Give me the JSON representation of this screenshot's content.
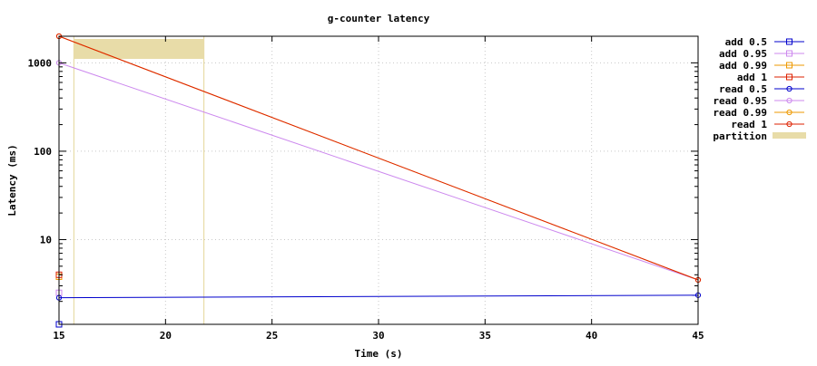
{
  "chart_data": {
    "type": "line",
    "title": "g-counter latency",
    "xlabel": "Time (s)",
    "ylabel": "Latency (ms)",
    "xlim": [
      15,
      45
    ],
    "ylim": [
      1.1,
      2000
    ],
    "yscale": "log",
    "x_ticks": [
      15,
      20,
      25,
      30,
      35,
      40,
      45
    ],
    "x_tick_labels": [
      "15",
      "20",
      "25",
      "30",
      "35",
      "40",
      "45"
    ],
    "y_ticks": [
      10,
      100,
      1000
    ],
    "y_tick_labels": [
      "10",
      "100",
      "1000"
    ],
    "grid": true,
    "legend_position": "right",
    "series": [
      {
        "name": "add 0.5",
        "color": "#0000cc",
        "marker": "square",
        "points": [
          [
            15,
            1.1
          ]
        ]
      },
      {
        "name": "add 0.95",
        "color": "#cc88ee",
        "marker": "square",
        "points": [
          [
            15,
            2.5
          ]
        ]
      },
      {
        "name": "add 0.99",
        "color": "#ee9900",
        "marker": "square",
        "points": [
          [
            15,
            3.8
          ]
        ]
      },
      {
        "name": "add 1",
        "color": "#dd2200",
        "marker": "square",
        "points": [
          [
            15,
            4.0
          ]
        ]
      },
      {
        "name": "read 0.5",
        "color": "#0000cc",
        "marker": "circle",
        "points": [
          [
            15,
            2.2
          ],
          [
            45,
            2.35
          ]
        ]
      },
      {
        "name": "read 0.95",
        "color": "#cc88ee",
        "marker": "circle",
        "points": [
          [
            15,
            1000
          ],
          [
            45,
            3.5
          ]
        ]
      },
      {
        "name": "read 0.99",
        "color": "#ee9900",
        "marker": "circle",
        "points": [
          [
            15,
            2000
          ],
          [
            45,
            3.5
          ]
        ]
      },
      {
        "name": "read 1",
        "color": "#dd2200",
        "marker": "circle",
        "points": [
          [
            15,
            2000
          ],
          [
            45,
            3.5
          ]
        ]
      }
    ],
    "partition": {
      "name": "partition",
      "color": "#e8dca8",
      "x_range": [
        15.7,
        21.8
      ]
    }
  }
}
